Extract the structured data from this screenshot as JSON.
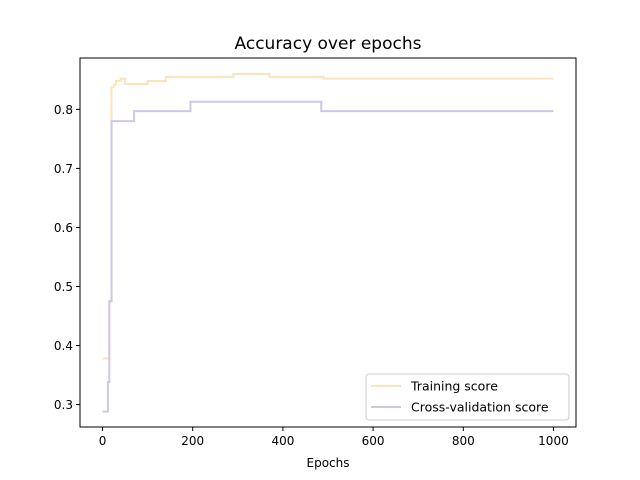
{
  "chart_data": {
    "type": "line",
    "title": "Accuracy over epochs",
    "xlabel": "Epochs",
    "ylabel": "",
    "xlim": [
      -50,
      1050
    ],
    "ylim": [
      0.262,
      0.887
    ],
    "xticks": [
      0,
      200,
      400,
      600,
      800,
      1000
    ],
    "yticks": [
      0.3,
      0.4,
      0.5,
      0.6,
      0.7,
      0.8
    ],
    "xtick_labels": [
      "0",
      "200",
      "400",
      "600",
      "800",
      "1000"
    ],
    "ytick_labels": [
      "0.3",
      "0.4",
      "0.5",
      "0.6",
      "0.7",
      "0.8"
    ],
    "grid": false,
    "legend_position": "lower-right",
    "series": [
      {
        "name": "Training score",
        "color": "#ffe2ba",
        "step": true,
        "x": [
          0,
          15,
          20,
          25,
          30,
          40,
          50,
          100,
          140,
          290,
          370,
          490,
          1000
        ],
        "y": [
          0.378,
          0.475,
          0.838,
          0.842,
          0.848,
          0.852,
          0.843,
          0.848,
          0.855,
          0.86,
          0.855,
          0.852,
          0.852
        ]
      },
      {
        "name": "Cross-validation score",
        "color": "#cfc8e4",
        "step": true,
        "x": [
          0,
          12,
          15,
          20,
          70,
          195,
          485,
          1000
        ],
        "y": [
          0.288,
          0.338,
          0.475,
          0.78,
          0.797,
          0.813,
          0.797,
          0.797
        ]
      }
    ]
  }
}
